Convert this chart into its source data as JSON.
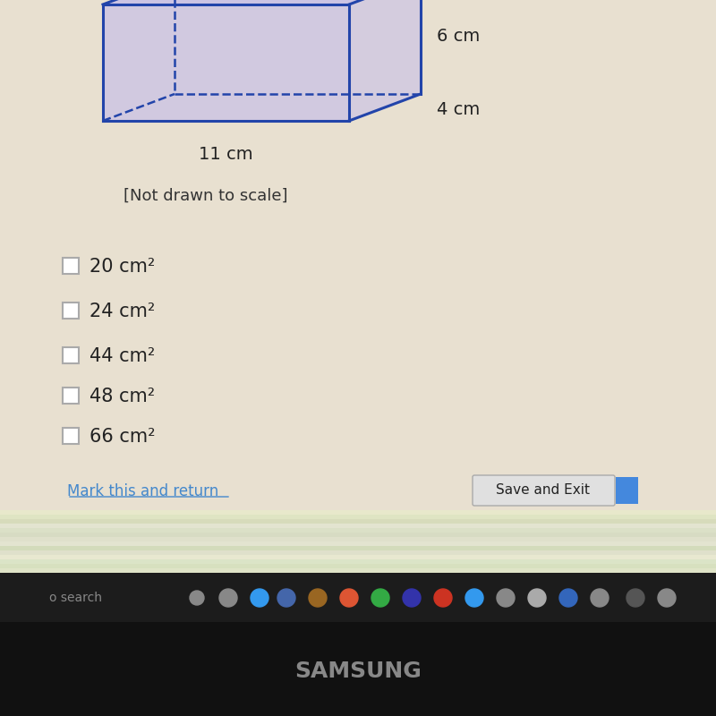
{
  "bg_color": "#d8cfc0",
  "screen_bg": "#e8e0d0",
  "dim_labels": [
    "6 cm",
    "4 cm",
    "11 cm"
  ],
  "note": "[Not drawn to scale]",
  "choices": [
    "20 cm²",
    "24 cm²",
    "44 cm²",
    "48 cm²",
    "66 cm²"
  ],
  "prism_color_fill": "#c8c0e8",
  "prism_color_stroke": "#2244aa",
  "checkbox_color": "#aaaaaa",
  "text_color": "#222222",
  "note_color": "#333333",
  "link_color": "#4488cc",
  "button_bg": "#e0e0e0",
  "button_text": "Save and Exit",
  "samsung_text": "SAMSUNG",
  "mark_return_text": "Mark this and return"
}
